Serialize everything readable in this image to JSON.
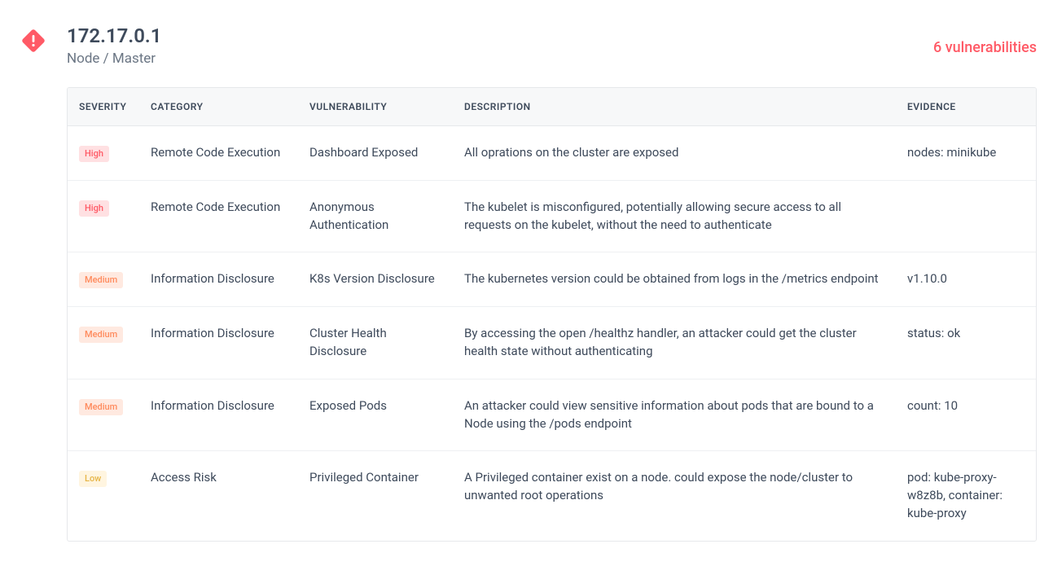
{
  "header": {
    "ip": "172.17.0.1",
    "nodeType": "Node / Master",
    "vulnCountText": "6 vulnerabilities"
  },
  "colors": {
    "accent": "#ff5a66",
    "textPrimary": "#3e4a5b",
    "textSecondary": "#6b7684",
    "border": "#e6e8eb",
    "headerBg": "#f7f8f9",
    "highBg": "#ffe0e2",
    "highText": "#ff5a66",
    "mediumBg": "#ffe9e0",
    "mediumText": "#ff8a5c",
    "lowBg": "#fff5e0",
    "lowText": "#e6b547"
  },
  "table": {
    "columns": [
      "SEVERITY",
      "CATEGORY",
      "VULNERABILITY",
      "DESCRIPTION",
      "EVIDENCE"
    ],
    "rows": [
      {
        "severity": "High",
        "severityClass": "severity-high",
        "category": "Remote Code Execution",
        "vulnerability": "Dashboard Exposed",
        "description": "All oprations on the cluster are exposed",
        "evidence": "nodes: minikube"
      },
      {
        "severity": "High",
        "severityClass": "severity-high",
        "category": "Remote Code Execution",
        "vulnerability": "Anonymous Authentication",
        "description": "The kubelet is misconfigured, potentially allowing secure access to all requests on the kubelet, without the need to authenticate",
        "evidence": ""
      },
      {
        "severity": "Medium",
        "severityClass": "severity-medium",
        "category": "Information Disclosure",
        "vulnerability": "K8s Version Disclosure",
        "description": "The kubernetes version could be obtained from logs in the /metrics endpoint",
        "evidence": "v1.10.0"
      },
      {
        "severity": "Medium",
        "severityClass": "severity-medium",
        "category": "Information Disclosure",
        "vulnerability": "Cluster Health Disclosure",
        "description": "By accessing the open /healthz handler, an attacker could get the cluster health state without authenticating",
        "evidence": "status: ok"
      },
      {
        "severity": "Medium",
        "severityClass": "severity-medium",
        "category": "Information Disclosure",
        "vulnerability": "Exposed Pods",
        "description": "An attacker could view sensitive information about pods that are bound to a Node using the /pods endpoint",
        "evidence": "count: 10"
      },
      {
        "severity": "Low",
        "severityClass": "severity-low",
        "category": "Access Risk",
        "vulnerability": "Privileged Container",
        "description": "A Privileged container exist on a node. could expose the node/cluster to unwanted root operations",
        "evidence": "pod: kube-proxy-w8z8b, container: kube-proxy"
      }
    ]
  }
}
